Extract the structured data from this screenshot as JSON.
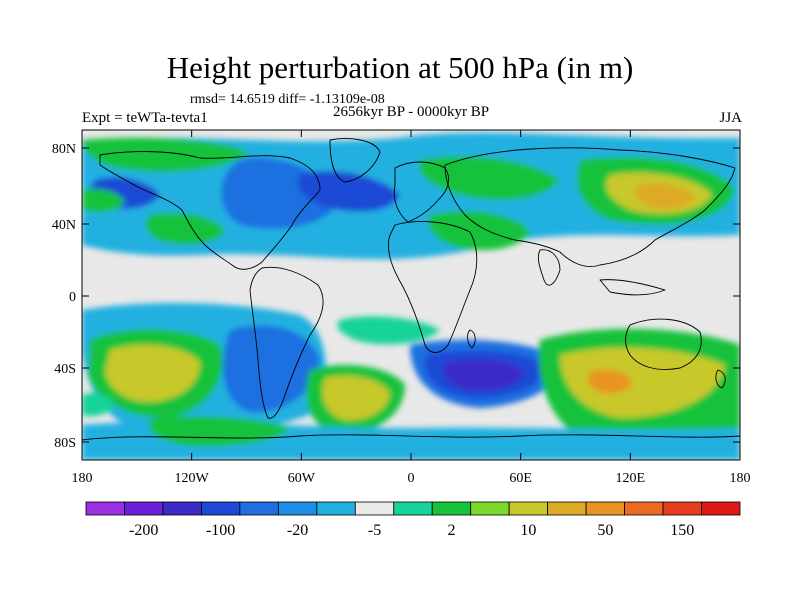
{
  "title": "Height perturbation at 500 hPa (in m)",
  "stats": "rmsd= 14.6519 diff= -1.13109e-08",
  "expt_label": "Expt = teWTa-tevta1",
  "period_label": "2656kyr BP - 0000kyr BP",
  "season_label": "JJA",
  "lat_ticks": [
    "80N",
    "40N",
    "0",
    "40S",
    "80S"
  ],
  "lon_ticks": [
    "180",
    "120W",
    "60W",
    "0",
    "60E",
    "120E",
    "180"
  ],
  "colorbar": {
    "labels": [
      "-200",
      "-100",
      "-20",
      "-5",
      "2",
      "10",
      "50",
      "150"
    ],
    "colors": [
      "#9a2fe6",
      "#6a1fd8",
      "#3b2bc8",
      "#1f48d6",
      "#1f6fe0",
      "#1d8fe6",
      "#22b0e0",
      "#e9e9e9",
      "#17d39a",
      "#18c23a",
      "#7ed82b",
      "#c8c82a",
      "#dcaa26",
      "#e89424",
      "#ea6a22",
      "#e83c1f",
      "#e01818"
    ]
  },
  "map_colors": {
    "neutral": "#e8e8e8",
    "neg_light": "#22b0e0",
    "neg_mid": "#1f6fe0",
    "neg_strong": "#1f48d6",
    "neg_deep": "#3b2bc8",
    "pos_light": "#17d39a",
    "pos_mid": "#18c23a",
    "pos_yellowgreen": "#7ed82b",
    "pos_yellow": "#c8c82a",
    "pos_orange": "#dcaa26",
    "pos_deep": "#e89424"
  }
}
